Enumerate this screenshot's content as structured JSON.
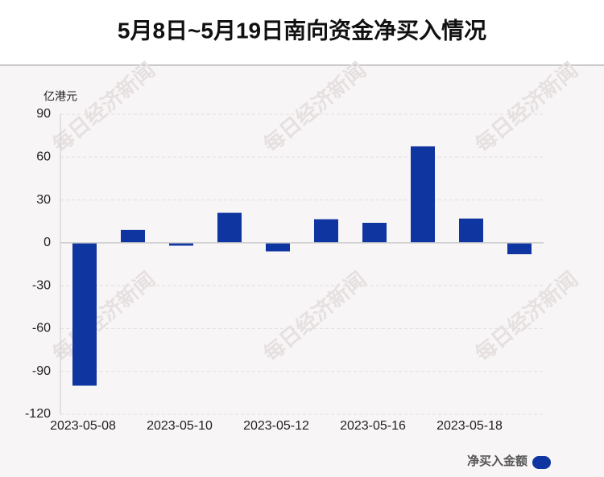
{
  "chart_data": {
    "type": "bar",
    "title": "5月8日~5月19日南向资金净买入情况",
    "y_axis_label": "亿港元",
    "watermark": "每日经济新闻",
    "categories": [
      "2023-05-08",
      null,
      "2023-05-10",
      null,
      "2023-05-12",
      null,
      "2023-05-16",
      null,
      "2023-05-18",
      null
    ],
    "series": [
      {
        "name": "净买入金额",
        "color": "#0f35a0",
        "values": [
          -100,
          9,
          -2,
          21,
          -6,
          16.5,
          14,
          67.5,
          17,
          -8
        ]
      }
    ],
    "ylim": [
      -120,
      90
    ],
    "yticks": [
      -120,
      -90,
      -60,
      -30,
      0,
      30,
      60,
      90
    ],
    "grid": true
  }
}
